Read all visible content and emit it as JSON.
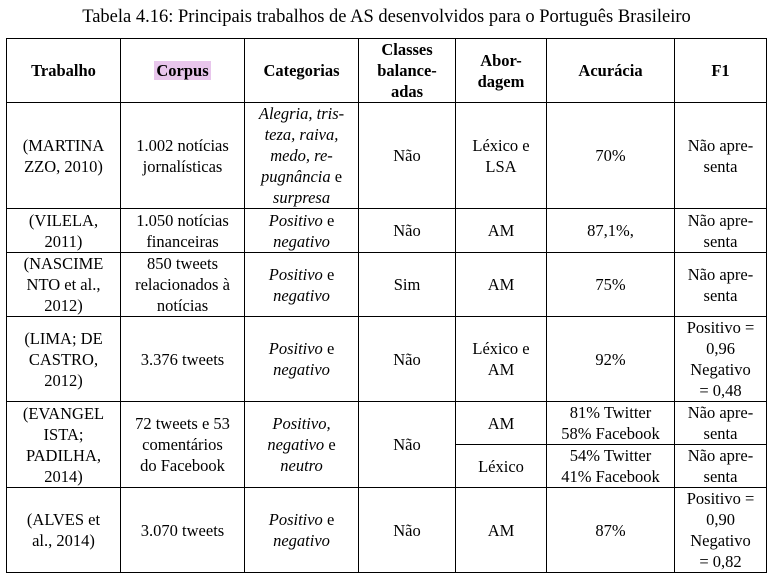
{
  "caption": "Tabela 4.16: Principais trabalhos de AS desenvolvidos para o Português Brasileiro",
  "headers": {
    "trabalho": "Trabalho",
    "corpus": "Corpus",
    "categorias": "Categorias",
    "classes_1": "Classes",
    "classes_2": "balance-",
    "classes_3": "adas",
    "abordagem_1": "Abor-",
    "abordagem_2": "dagem",
    "acuracia": "Acurácia",
    "f1": "F1"
  },
  "rows": [
    {
      "trabalho": [
        "(MARTINA",
        "ZZO, 2010)"
      ],
      "corpus": [
        "1.002 notícias",
        "jornalísticas"
      ],
      "categorias": [
        {
          "t": "Alegria, tris-",
          "i": true
        },
        {
          "t": "teza, raiva,",
          "i": true
        },
        {
          "t": "medo, re-",
          "i": true
        },
        {
          "t": "pugnância",
          "i": true,
          "tail": " e"
        },
        {
          "t": "surpresa",
          "i": true
        }
      ],
      "classes": "Não",
      "abordagem": [
        "Léxico e",
        "LSA"
      ],
      "acuracia": [
        "70%"
      ],
      "f1": [
        "Não apre-",
        "senta"
      ]
    },
    {
      "trabalho": [
        "(VILELA,",
        "2011)"
      ],
      "corpus": [
        "1.050 notícias",
        "financeiras"
      ],
      "categorias": [
        {
          "t": "Positivo",
          "i": true,
          "tail": " e"
        },
        {
          "t": "negativo",
          "i": true
        }
      ],
      "classes": "Não",
      "abordagem": [
        "AM"
      ],
      "acuracia": [
        "87,1%,"
      ],
      "f1": [
        "Não apre-",
        "senta"
      ]
    },
    {
      "trabalho": [
        "(NASCIME",
        "NTO et al.,",
        "2012)"
      ],
      "corpus": [
        "850 tweets",
        "relacionados à",
        "notícias"
      ],
      "categorias": [
        {
          "t": "Positivo",
          "i": true,
          "tail": " e"
        },
        {
          "t": "negativo",
          "i": true
        }
      ],
      "classes": "Sim",
      "abordagem": [
        "AM"
      ],
      "acuracia": [
        "75%"
      ],
      "f1": [
        "Não apre-",
        "senta"
      ]
    },
    {
      "trabalho": [
        "(LIMA; DE",
        "CASTRO,",
        "2012)"
      ],
      "corpus": [
        "3.376 tweets"
      ],
      "categorias": [
        {
          "t": "Positivo",
          "i": true,
          "tail": " e"
        },
        {
          "t": "negativo",
          "i": true
        }
      ],
      "classes": "Não",
      "abordagem": [
        "Léxico e",
        "AM"
      ],
      "acuracia": [
        "92%"
      ],
      "f1": [
        "Positivo =",
        "0,96",
        "Negativo",
        "= 0,48"
      ]
    },
    {
      "trabalho": [
        "(EVANGEL",
        "ISTA;",
        "PADILHA,",
        "2014)"
      ],
      "corpus": [
        "72 tweets e 53",
        "comentários",
        "do Facebook"
      ],
      "categorias": [
        {
          "t": "Positivo,",
          "i": true
        },
        {
          "t": "negativo",
          "i": true,
          "tail": " e"
        },
        {
          "t": "neutro",
          "i": true
        }
      ],
      "classes": "Não",
      "sub": [
        {
          "abordagem": [
            "AM"
          ],
          "acuracia": [
            "81% Twitter",
            "58% Facebook"
          ],
          "f1": [
            "Não apre-",
            "senta"
          ]
        },
        {
          "abordagem": [
            "Léxico"
          ],
          "acuracia": [
            "54% Twitter",
            "41% Facebook"
          ],
          "f1": [
            "Não apre-",
            "senta"
          ]
        }
      ]
    },
    {
      "trabalho": [
        "(ALVES et",
        "al., 2014)"
      ],
      "corpus": [
        "3.070 tweets"
      ],
      "categorias": [
        {
          "t": "Positivo",
          "i": true,
          "tail": " e"
        },
        {
          "t": "negativo",
          "i": true
        }
      ],
      "classes": "Não",
      "abordagem": [
        "AM"
      ],
      "acuracia": [
        "87%"
      ],
      "f1": [
        "Positivo =",
        "0,90",
        "Negativo",
        "= 0,82"
      ]
    }
  ]
}
